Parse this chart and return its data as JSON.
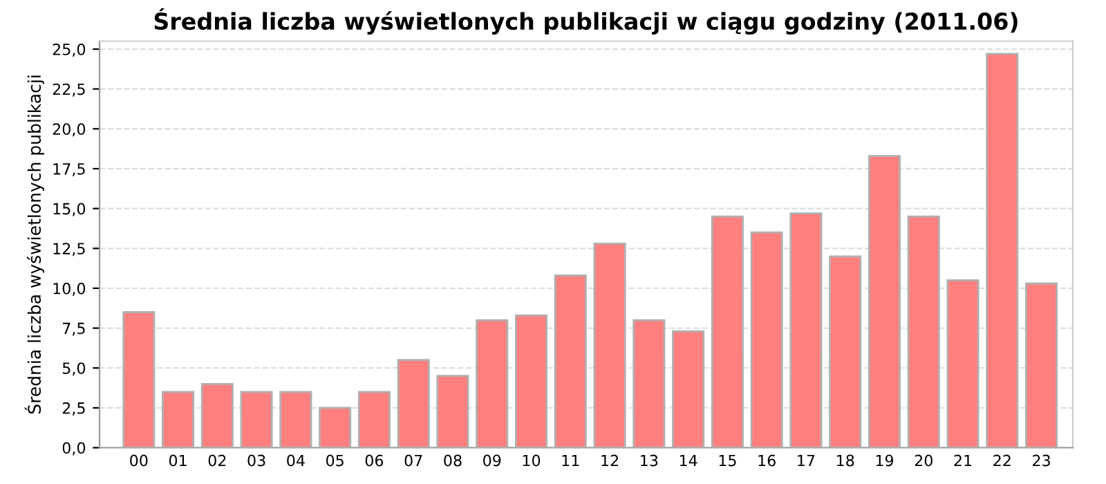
{
  "chart_data": {
    "type": "bar",
    "title": "Średnia liczba wyświetlonych publikacji w ciągu godziny (2011.06)",
    "ylabel": "Średnia liczba wyświetlonych publikacji",
    "categories": [
      "00",
      "01",
      "02",
      "03",
      "04",
      "05",
      "06",
      "07",
      "08",
      "09",
      "10",
      "11",
      "12",
      "13",
      "14",
      "15",
      "16",
      "17",
      "18",
      "19",
      "20",
      "21",
      "22",
      "23"
    ],
    "values": [
      8.5,
      3.5,
      4.0,
      3.5,
      3.5,
      2.5,
      3.5,
      5.5,
      4.5,
      8.0,
      8.3,
      10.8,
      12.8,
      8.0,
      7.3,
      14.5,
      13.5,
      14.7,
      12.0,
      18.3,
      14.5,
      10.5,
      24.7,
      10.3
    ],
    "color": "#ff7f7f",
    "ylim": [
      0,
      25.5
    ],
    "yticks": [
      {
        "value": 0,
        "label": "0,0"
      },
      {
        "value": 2.5,
        "label": "2,5"
      },
      {
        "value": 5,
        "label": "5,0"
      },
      {
        "value": 7.5,
        "label": "7,5"
      },
      {
        "value": 10,
        "label": "10,0"
      },
      {
        "value": 12.5,
        "label": "12,5"
      },
      {
        "value": 15,
        "label": "15,0"
      },
      {
        "value": 17.5,
        "label": "17,5"
      },
      {
        "value": 20,
        "label": "20,0"
      },
      {
        "value": 22.5,
        "label": "22,5"
      },
      {
        "value": 25,
        "label": "25,0"
      }
    ],
    "grid": "y"
  }
}
